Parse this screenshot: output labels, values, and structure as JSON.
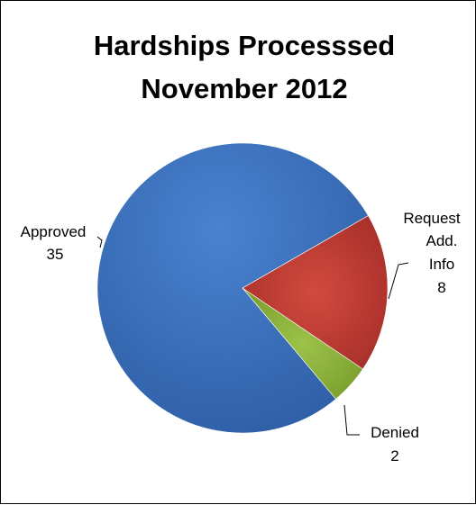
{
  "chart_data": {
    "type": "pie",
    "title_lines": [
      "Hardships Processsed",
      "November 2012"
    ],
    "slices": [
      {
        "name": "Request Add. Info",
        "label_lines": [
          "Request",
          "Add.",
          "Info"
        ],
        "value": 8,
        "value_label": "8",
        "color": "#C0392F"
      },
      {
        "name": "Denied",
        "label_lines": [
          "Denied"
        ],
        "value": 2,
        "value_label": "2",
        "color": "#8DB43A"
      },
      {
        "name": "Approved",
        "label_lines": [
          "Approved"
        ],
        "value": 35,
        "value_label": "35",
        "color": "#3A70BE"
      }
    ],
    "start_slice": "Request Add. Info",
    "legend": false
  }
}
